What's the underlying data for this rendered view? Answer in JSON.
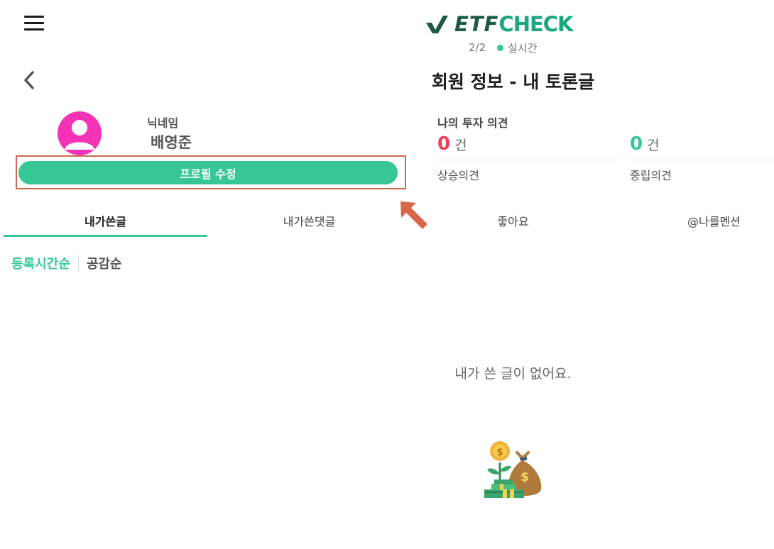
{
  "header": {
    "menu_icon": "hamburger-menu-icon",
    "logo": {
      "part1": "ETF",
      "part2": "CHECK",
      "mark_icon": "checkmark-logo-icon"
    },
    "page_indicator": "2/2",
    "live_status": "실시간",
    "live_dot_color": "#35c795",
    "back_icon": "chevron-left-icon",
    "title": "회원 정보 - 내 토론글"
  },
  "profile": {
    "avatar_icon": "user-avatar-icon",
    "avatar_color": "#f532b5",
    "nickname_label": "닉네임",
    "nickname": "배영준",
    "edit_button": "프로필 수정"
  },
  "stats": {
    "title": "나의 투자 의견",
    "items": [
      {
        "count": "0",
        "unit": "건",
        "label": "상승의견",
        "color": "#f03e52"
      },
      {
        "count": "0",
        "unit": "건",
        "label": "중립의견",
        "color": "#37c796"
      }
    ]
  },
  "tabs": [
    {
      "label": "내가쓴글",
      "active": true
    },
    {
      "label": "내가쓴댓글",
      "active": false
    },
    {
      "label": "좋아요",
      "active": false
    },
    {
      "label": "@나를멘션",
      "active": false
    }
  ],
  "sort": {
    "options": [
      "등록시간순",
      "공감순"
    ],
    "selected": "등록시간순"
  },
  "empty": {
    "message": "내가 쓴 글이 없어요.",
    "illustration": "money-bag-plant-icon"
  },
  "colors": {
    "accent": "#37c796",
    "annotation": "#c9694e"
  }
}
